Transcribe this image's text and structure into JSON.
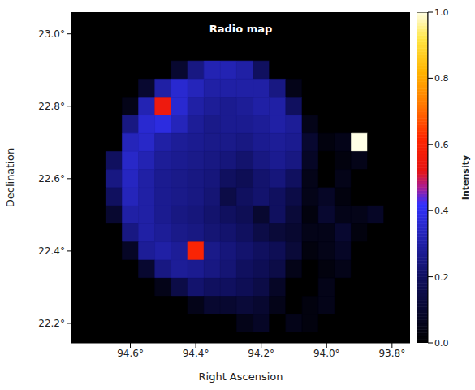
{
  "chart_data": {
    "type": "heatmap",
    "title": "Radio map",
    "x_label": "Right Ascension",
    "y_label": "Declination",
    "x": [
      94.75,
      94.7,
      94.65,
      94.6,
      94.55,
      94.5,
      94.45,
      94.4,
      94.35,
      94.3,
      94.25,
      94.2,
      94.15,
      94.1,
      94.05,
      94.0,
      93.95,
      93.9,
      93.85,
      93.8
    ],
    "y": [
      23.05,
      23.0,
      22.95,
      22.9,
      22.85,
      22.8,
      22.75,
      22.7,
      22.65,
      22.6,
      22.55,
      22.5,
      22.45,
      22.4,
      22.35,
      22.3,
      22.25,
      22.2,
      22.15
    ],
    "cells": [
      [
        0,
        0,
        0,
        0,
        0,
        0,
        0,
        0,
        0,
        0,
        0,
        0,
        0,
        0,
        0,
        0,
        0,
        0,
        0,
        0
      ],
      [
        0,
        0,
        0,
        0,
        0,
        0,
        0,
        0,
        0,
        0,
        0,
        0,
        0,
        0,
        0,
        0,
        0,
        0,
        0,
        0
      ],
      [
        0,
        0,
        0,
        0,
        0,
        0,
        0,
        0,
        0,
        0,
        0,
        0,
        0,
        0,
        0,
        0,
        0,
        0,
        0,
        0
      ],
      [
        0,
        0,
        0,
        0,
        0,
        0,
        0.1,
        0.25,
        0.32,
        0.32,
        0.3,
        0.2,
        0,
        0,
        0,
        0,
        0,
        0,
        0,
        0
      ],
      [
        0,
        0,
        0,
        0,
        0.1,
        0.3,
        0.36,
        0.33,
        0.3,
        0.3,
        0.3,
        0.3,
        0.25,
        0.05,
        0,
        0,
        0,
        0,
        0,
        0
      ],
      [
        0,
        0,
        0,
        0.05,
        0.32,
        0.55,
        0.36,
        0.3,
        0.28,
        0.27,
        0.28,
        0.3,
        0.3,
        0.2,
        0,
        0,
        0,
        0,
        0,
        0
      ],
      [
        0,
        0,
        0,
        0.25,
        0.36,
        0.38,
        0.33,
        0.28,
        0.26,
        0.27,
        0.27,
        0.28,
        0.3,
        0.28,
        0.05,
        0,
        0,
        0,
        0,
        0
      ],
      [
        0,
        0,
        0,
        0.33,
        0.35,
        0.3,
        0.28,
        0.27,
        0.26,
        0.26,
        0.25,
        0.27,
        0.28,
        0.27,
        0.1,
        0.03,
        0.05,
        1.0,
        0,
        0
      ],
      [
        0,
        0,
        0.2,
        0.35,
        0.32,
        0.28,
        0.27,
        0.26,
        0.25,
        0.24,
        0.22,
        0.25,
        0.27,
        0.25,
        0.08,
        0,
        0.03,
        0.05,
        0,
        0
      ],
      [
        0,
        0,
        0.25,
        0.34,
        0.3,
        0.27,
        0.26,
        0.25,
        0.24,
        0.2,
        0.18,
        0.22,
        0.24,
        0.2,
        0.05,
        0,
        0.05,
        0,
        0,
        0
      ],
      [
        0,
        0,
        0.2,
        0.33,
        0.3,
        0.27,
        0.26,
        0.25,
        0.23,
        0.15,
        0.2,
        0.22,
        0.2,
        0.15,
        0.05,
        0.08,
        0.03,
        0,
        0,
        0
      ],
      [
        0,
        0,
        0.1,
        0.3,
        0.3,
        0.27,
        0.25,
        0.24,
        0.22,
        0.2,
        0.18,
        0.1,
        0.2,
        0.12,
        0.03,
        0.1,
        0.05,
        0.05,
        0.08,
        0
      ],
      [
        0,
        0,
        0,
        0.25,
        0.3,
        0.28,
        0.26,
        0.25,
        0.23,
        0.22,
        0.2,
        0.15,
        0.12,
        0.1,
        0.05,
        0.05,
        0.1,
        0.03,
        0,
        0
      ],
      [
        0,
        0,
        0,
        0.08,
        0.28,
        0.3,
        0.28,
        0.6,
        0.26,
        0.24,
        0.22,
        0.2,
        0.18,
        0.12,
        0.03,
        0.05,
        0.08,
        0,
        0,
        0
      ],
      [
        0,
        0,
        0,
        0,
        0.1,
        0.25,
        0.28,
        0.27,
        0.25,
        0.23,
        0.2,
        0.18,
        0.15,
        0.05,
        0,
        0.03,
        0.05,
        0,
        0,
        0
      ],
      [
        0,
        0,
        0,
        0,
        0,
        0.05,
        0.15,
        0.22,
        0.2,
        0.2,
        0.18,
        0.15,
        0.08,
        0,
        0,
        0.05,
        0,
        0,
        0,
        0
      ],
      [
        0,
        0,
        0,
        0,
        0,
        0,
        0,
        0.05,
        0.1,
        0.1,
        0.12,
        0.1,
        0.05,
        0,
        0.03,
        0.05,
        0,
        0,
        0,
        0
      ],
      [
        0,
        0,
        0,
        0,
        0,
        0,
        0,
        0,
        0,
        0,
        0.05,
        0.08,
        0,
        0.05,
        0.03,
        0,
        0,
        0,
        0,
        0
      ],
      [
        0,
        0,
        0,
        0,
        0,
        0,
        0,
        0,
        0,
        0,
        0,
        0,
        0,
        0,
        0,
        0,
        0,
        0,
        0,
        0
      ]
    ],
    "xlim": [
      94.78,
      93.745
    ],
    "ylim": [
      22.146,
      23.06
    ],
    "xticks": [
      {
        "value": 94.6,
        "label": "94.6°"
      },
      {
        "value": 94.4,
        "label": "94.4°"
      },
      {
        "value": 94.2,
        "label": "94.2°"
      },
      {
        "value": 94.0,
        "label": "94.0°"
      },
      {
        "value": 93.8,
        "label": "93.8°"
      }
    ],
    "yticks": [
      {
        "value": 22.2,
        "label": "22.2°"
      },
      {
        "value": 22.4,
        "label": "22.4°"
      },
      {
        "value": 22.6,
        "label": "22.6°"
      },
      {
        "value": 22.8,
        "label": "22.8°"
      },
      {
        "value": 23.0,
        "label": "23.0°"
      }
    ],
    "colorbar": {
      "label": "Intensity",
      "range": [
        0,
        1
      ],
      "ticks": [
        {
          "value": 0,
          "label": "0.0"
        },
        {
          "value": 0.2,
          "label": "0.2"
        },
        {
          "value": 0.4,
          "label": "0.4"
        },
        {
          "value": 0.6,
          "label": "0.6"
        },
        {
          "value": 0.8,
          "label": "0.8"
        },
        {
          "value": 1,
          "label": "1.0"
        }
      ]
    }
  }
}
